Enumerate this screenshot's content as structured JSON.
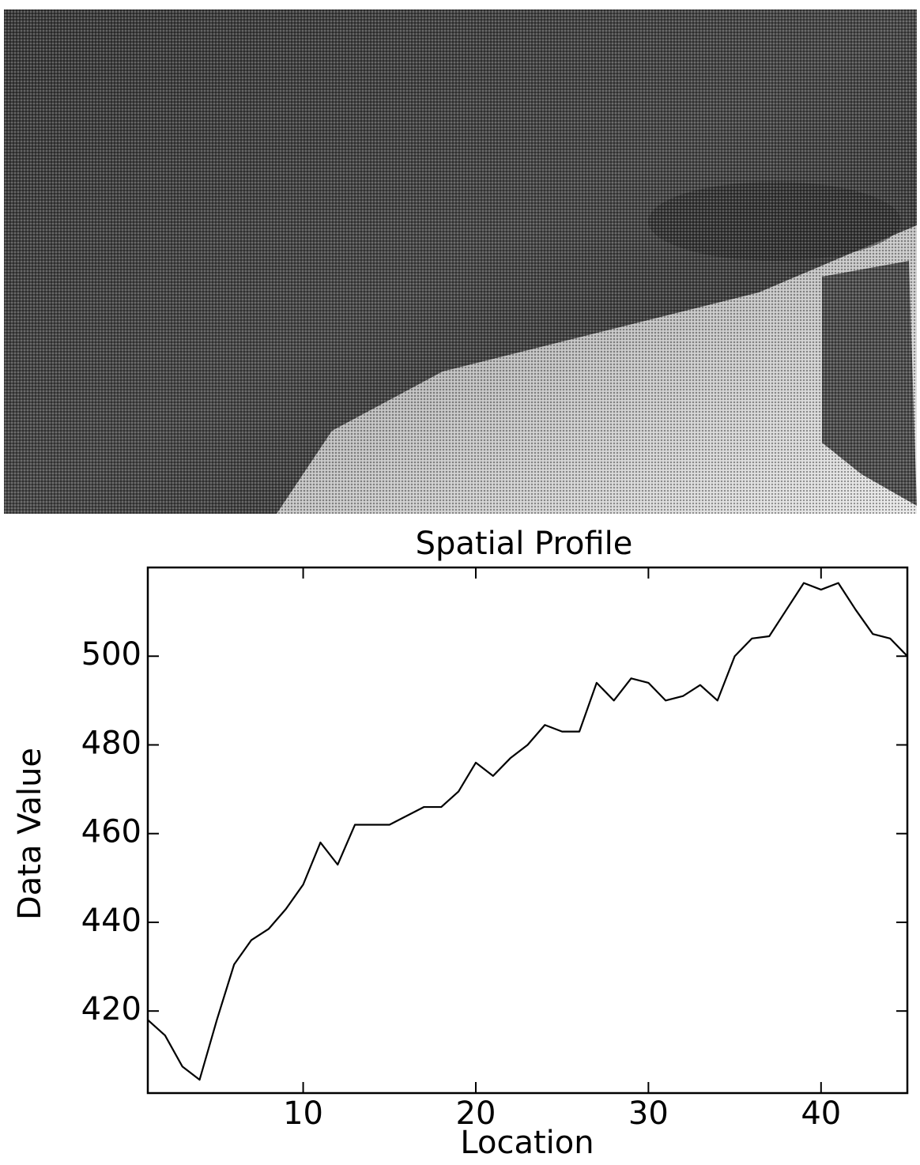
{
  "chart_data": {
    "type": "line",
    "title": "Spatial Profile",
    "x_label": "Location",
    "y_label": "Data Value",
    "x": [
      1,
      2,
      3,
      4,
      5,
      6,
      7,
      8,
      9,
      10,
      11,
      12,
      13,
      14,
      15,
      16,
      17,
      18,
      19,
      20,
      21,
      22,
      23,
      24,
      25,
      26,
      27,
      28,
      29,
      30,
      31,
      32,
      33,
      34,
      35,
      36,
      37,
      38,
      39,
      40,
      41,
      42,
      43,
      44,
      45
    ],
    "values": [
      418,
      414.5,
      407.5,
      404.5,
      418,
      430.5,
      436,
      438.5,
      443,
      448.5,
      458,
      453,
      462,
      462,
      462,
      464,
      466,
      466,
      469.5,
      476,
      473,
      477,
      480,
      484.5,
      483,
      483,
      494,
      490,
      495,
      494,
      490,
      491,
      493.5,
      490,
      500,
      504,
      504.5,
      510.5,
      516.5,
      515,
      516.5,
      510.5,
      505,
      504,
      500
    ],
    "color": "#000000",
    "xlim": [
      1,
      45
    ],
    "xticks": [
      10,
      20,
      30,
      40
    ],
    "ylim": [
      401.5,
      520
    ],
    "yticks": [
      420,
      440,
      460,
      480,
      500
    ]
  }
}
